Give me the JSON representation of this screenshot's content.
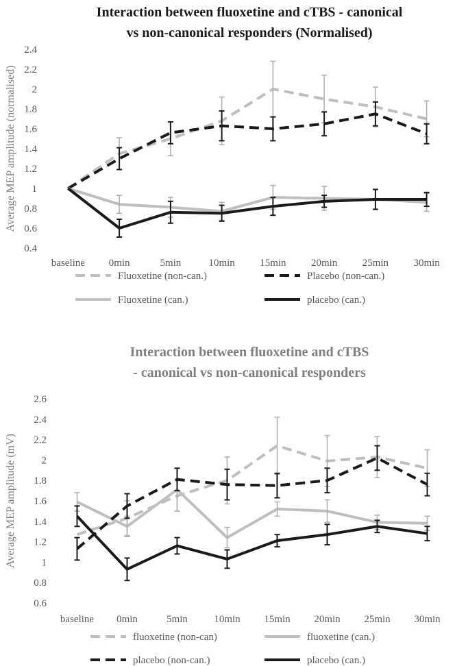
{
  "chart_data": [
    {
      "type": "line",
      "title": "Interaction between fluoxetine and cTBS - canonical vs non-canonical responders (Normalised)",
      "title_lines": [
        "Interaction between fluoxetine and cTBS - canonical",
        "vs non-canonical responders (Normalised)"
      ],
      "title_color": "#1a1a1a",
      "ylabel": "Average MEP amplitude (normalised)",
      "xlabel": "",
      "categories": [
        "baseline",
        "0min",
        "5min",
        "10min",
        "15min",
        "20min",
        "25min",
        "30min"
      ],
      "ylim": [
        0.4,
        2.4
      ],
      "yticks": [
        "0.4",
        "0.6",
        "0.8",
        "1",
        "1.2",
        "1.4",
        "1.6",
        "1.8",
        "2",
        "2.2",
        "2.4"
      ],
      "grid": false,
      "legend_position": "bottom",
      "series": [
        {
          "name": "Fluoxetine (non-can.)",
          "color": "#bfbfbf",
          "dash": true,
          "values": [
            1.0,
            1.35,
            1.5,
            1.68,
            2.0,
            1.9,
            1.82,
            1.7
          ],
          "err": [
            0,
            0.16,
            0.17,
            0.24,
            0.28,
            0.24,
            0.2,
            0.18
          ]
        },
        {
          "name": "Placebo (non-can.)",
          "color": "#1a1a1a",
          "dash": true,
          "values": [
            1.0,
            1.3,
            1.56,
            1.63,
            1.6,
            1.65,
            1.75,
            1.55
          ],
          "err": [
            0,
            0.11,
            0.11,
            0.15,
            0.12,
            0.12,
            0.12,
            0.1
          ]
        },
        {
          "name": "Fluoxetine (can.)",
          "color": "#bfbfbf",
          "dash": false,
          "values": [
            1.0,
            0.84,
            0.81,
            0.77,
            0.91,
            0.9,
            0.89,
            0.86
          ],
          "err": [
            0,
            0.09,
            0.1,
            0.09,
            0.12,
            0.12,
            0.1,
            0.09
          ]
        },
        {
          "name": "placebo (can.)",
          "color": "#1a1a1a",
          "dash": false,
          "values": [
            1.0,
            0.6,
            0.76,
            0.75,
            0.82,
            0.87,
            0.89,
            0.89
          ],
          "err": [
            0,
            0.09,
            0.11,
            0.08,
            0.09,
            0.06,
            0.1,
            0.07
          ]
        }
      ]
    },
    {
      "type": "line",
      "title": "Interaction between fluoxetine and cTBS - canonical vs non-canonical responders",
      "title_lines": [
        "Interaction between fluoxetine and cTBS",
        "- canonical vs non-canonical responders"
      ],
      "title_color": "#808080",
      "ylabel": "Average MEP amplitude (mV)",
      "xlabel": "",
      "categories": [
        "baseline",
        "0min",
        "5min",
        "10min",
        "15min",
        "20min",
        "25min",
        "30min"
      ],
      "ylim": [
        0.6,
        2.6
      ],
      "yticks": [
        "0.6",
        "0.8",
        "1",
        "1.2",
        "1.4",
        "1.6",
        "1.8",
        "2",
        "2.2",
        "2.4",
        "2.6"
      ],
      "grid": false,
      "legend_position": "bottom",
      "series": [
        {
          "name": "fluoxetine (non-can)",
          "color": "#bfbfbf",
          "dash": true,
          "values": [
            1.27,
            1.43,
            1.65,
            1.8,
            2.14,
            1.99,
            2.03,
            1.92
          ],
          "err": [
            0,
            0.17,
            0.15,
            0.23,
            0.28,
            0.25,
            0.2,
            0.18
          ]
        },
        {
          "name": "fluoxetine (can.)",
          "color": "#bfbfbf",
          "dash": false,
          "values": [
            1.59,
            1.35,
            1.71,
            1.24,
            1.52,
            1.5,
            1.39,
            1.38
          ],
          "err": [
            0.09,
            0.1,
            0.21,
            0.1,
            0.07,
            0.11,
            0.07,
            0.07
          ]
        },
        {
          "name": "placebo (non-can.)",
          "color": "#1a1a1a",
          "dash": true,
          "values": [
            1.13,
            1.55,
            1.81,
            1.76,
            1.75,
            1.8,
            2.02,
            1.76
          ],
          "err": [
            0.11,
            0.12,
            0.11,
            0.15,
            0.12,
            0.12,
            0.12,
            0.11
          ]
        },
        {
          "name": "placebo (can.)",
          "color": "#1a1a1a",
          "dash": false,
          "values": [
            1.45,
            0.93,
            1.16,
            1.03,
            1.21,
            1.27,
            1.35,
            1.28
          ],
          "err": [
            0.1,
            0.11,
            0.08,
            0.09,
            0.06,
            0.1,
            0.06,
            0.07
          ]
        }
      ]
    }
  ]
}
